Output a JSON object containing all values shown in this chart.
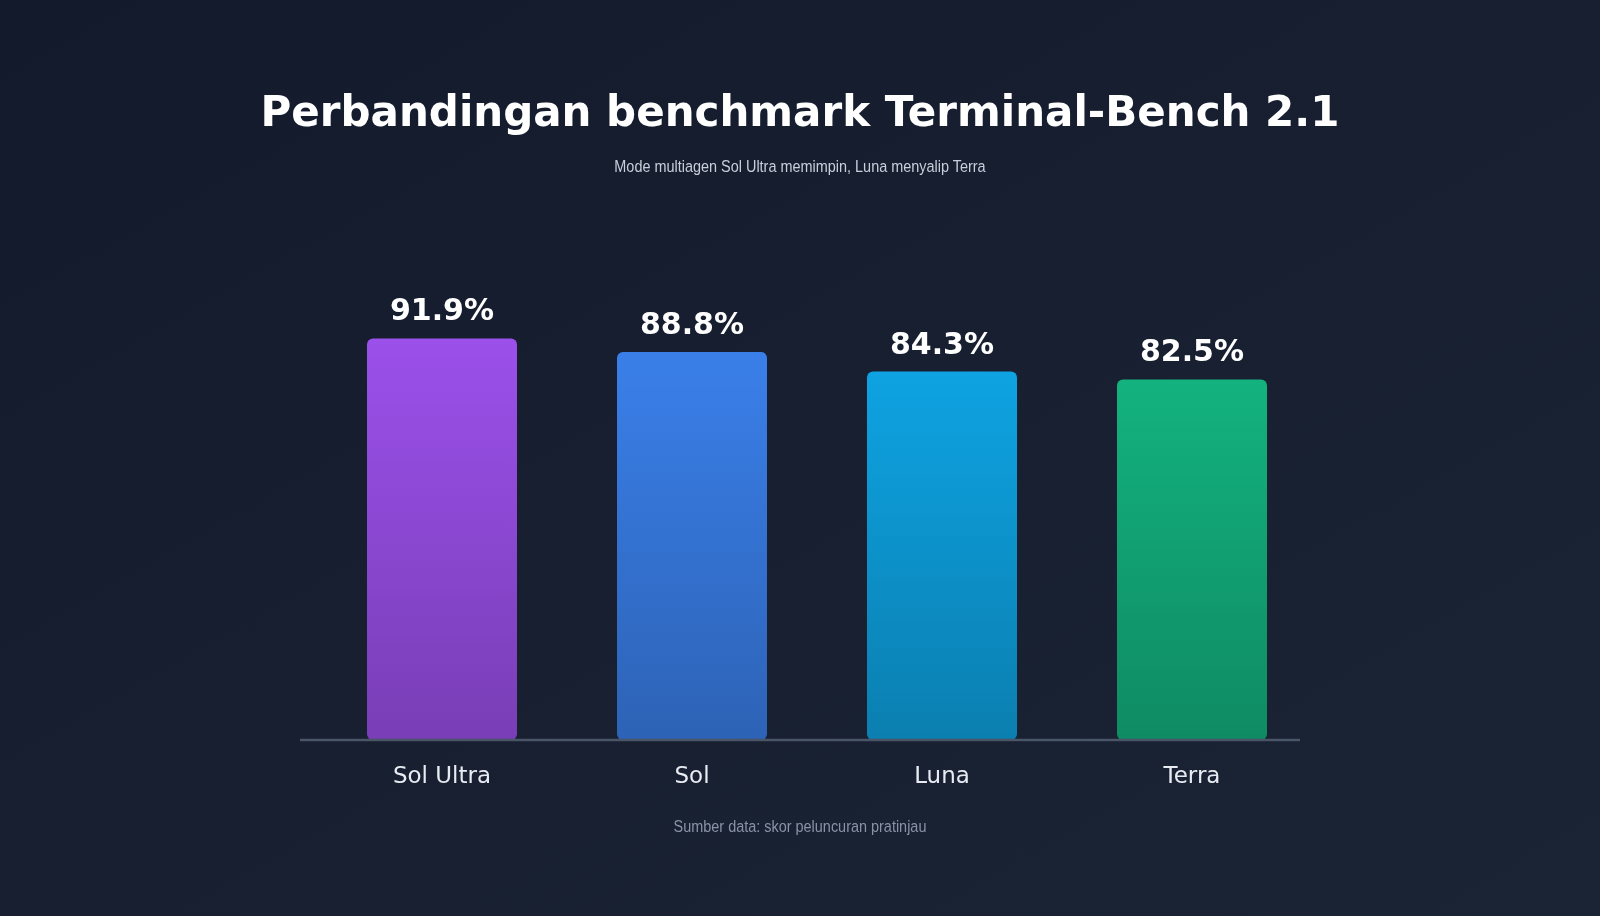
{
  "chart_data": {
    "type": "bar",
    "title": "Perbandingan benchmark Terminal-Bench 2.1",
    "subtitle": "Mode multiagen Sol Ultra memimpin, Luna menyalip Terra",
    "categories": [
      "Sol Ultra",
      "Sol",
      "Luna",
      "Terra"
    ],
    "values": [
      91.9,
      88.8,
      84.3,
      82.5
    ],
    "colors": [
      "#9b50ea",
      "#3a7fe9",
      "#0ea3e2",
      "#13b27f"
    ],
    "value_labels": [
      "91.9%",
      "88.8%",
      "84.3%",
      "82.5%"
    ],
    "annotations": [
      "Sumber data: skor peluncuran pratinjau"
    ]
  }
}
